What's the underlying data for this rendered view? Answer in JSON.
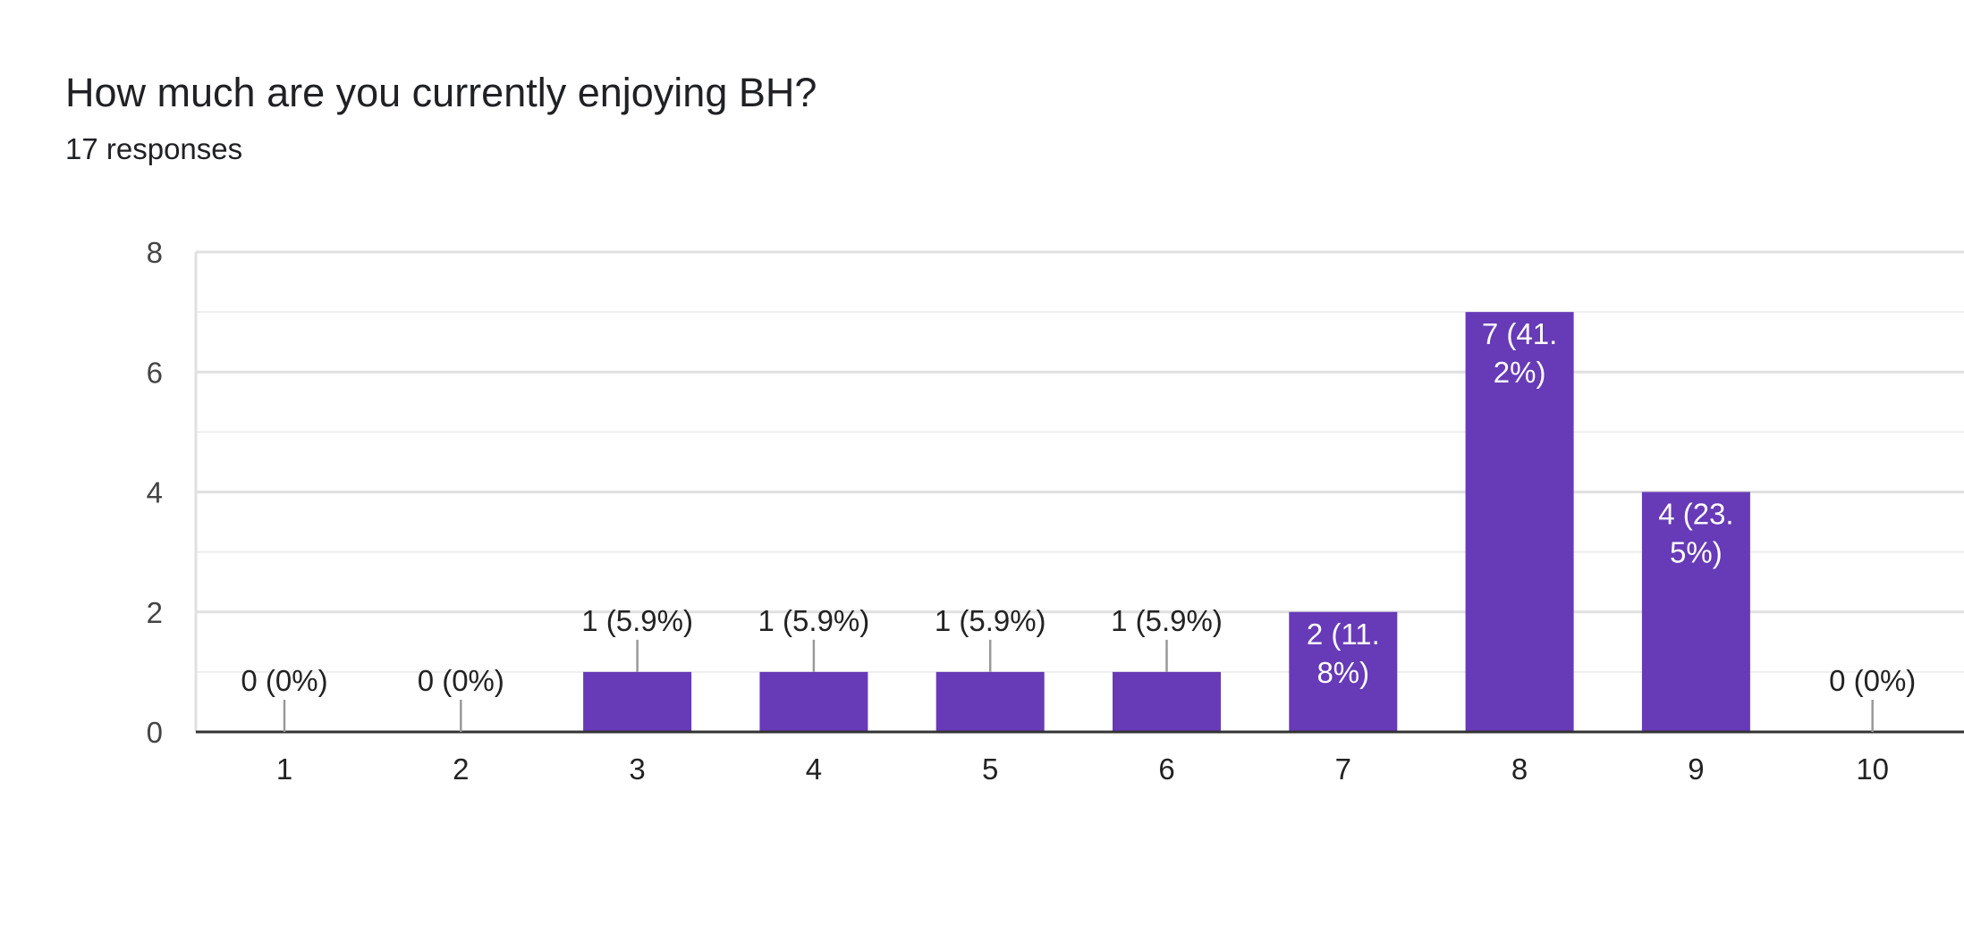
{
  "question": {
    "title": "How much are you currently enjoying BH?",
    "responses_label": "17 responses"
  },
  "colors": {
    "bar": "#673ab7",
    "gridline": "#e0e0e0",
    "minor_gridline": "#eeeeee",
    "axis": "#333333",
    "tick_text": "#444444",
    "label_text": "#222222",
    "inside_label_text": "#ffffff",
    "leader_line": "#999999"
  },
  "chart_data": {
    "type": "bar",
    "categories": [
      "1",
      "2",
      "3",
      "4",
      "5",
      "6",
      "7",
      "8",
      "9",
      "10"
    ],
    "values": [
      0,
      0,
      1,
      1,
      1,
      1,
      2,
      7,
      4,
      0
    ],
    "data_labels": [
      [
        "0 (0%)"
      ],
      [
        "0 (0%)"
      ],
      [
        "1 (5.9%)"
      ],
      [
        "1 (5.9%)"
      ],
      [
        "1 (5.9%)"
      ],
      [
        "1 (5.9%)"
      ],
      [
        "2 (11.",
        "8%)"
      ],
      [
        "7 (41.",
        "2%)"
      ],
      [
        "4 (23.",
        "5%)"
      ],
      [
        "0 (0%)"
      ]
    ],
    "yticks": [
      0,
      2,
      4,
      6,
      8
    ],
    "ylim": [
      0,
      8
    ],
    "grid": true
  }
}
